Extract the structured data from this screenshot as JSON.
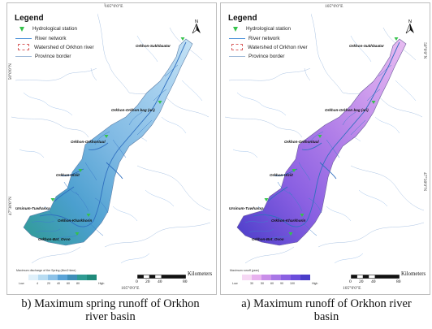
{
  "legend": {
    "title": "Legend",
    "items": [
      {
        "label": "Hydrological station"
      },
      {
        "label": "River network"
      },
      {
        "label": "Watershed of Orkhon river"
      },
      {
        "label": "Province border"
      }
    ]
  },
  "coordinates": {
    "top_lon": "105°0'0\"E",
    "bottom_lon": "105°0'0\"E",
    "lat_upper": "50°0'0\"N",
    "lat_lower": "47°30'0\"N"
  },
  "stations": [
    {
      "name": "Orkhon-Sukhbaatar"
    },
    {
      "name": "Orkhon-Orkhon bag (ari)"
    },
    {
      "name": "Orkhon-Orkhontuul"
    },
    {
      "name": "Orkhon-Ulziit"
    },
    {
      "name": "Ursinum-Tuwhanxa"
    },
    {
      "name": "Orkhon-Kharkhorin"
    },
    {
      "name": "Orkhon-Bat_Ovoo"
    }
  ],
  "scale": {
    "ticks": [
      "0",
      "20",
      "40",
      "80"
    ],
    "unit": "Kilometers"
  },
  "colors": {
    "panel_b_ramp": [
      "#dff0fa",
      "#b8dcf2",
      "#8dc2e8",
      "#5aa3d7",
      "#3f8fb9",
      "#2f9b93",
      "#1f8a7a"
    ],
    "panel_a_ramp": [
      "#f6d8f4",
      "#e8b2ef",
      "#c98ee9",
      "#a877e6",
      "#8a60e2",
      "#6b4ddc",
      "#4a3dc9"
    ],
    "river": "#4a90d9",
    "station": "#35c24b"
  },
  "panels": [
    {
      "id": "b",
      "ramp_title": "Maximum discharge of the Spring (l/km2·time)",
      "ramp_low": "Low",
      "ramp_high": "High",
      "ramp_values": [
        "4",
        "20",
        "40",
        "60",
        "80"
      ],
      "caption_line1": "b) Maximum spring runoff of Orkhon",
      "caption_line2": "river basin"
    },
    {
      "id": "a",
      "ramp_title": "Maximum runoff (year)",
      "ramp_low": "Low",
      "ramp_high": "High",
      "ramp_values": [
        "30",
        "50",
        "60",
        "90",
        "100"
      ],
      "caption_line1": "a) Maximum runoff of Orkhon river",
      "caption_line2": "basin"
    }
  ]
}
